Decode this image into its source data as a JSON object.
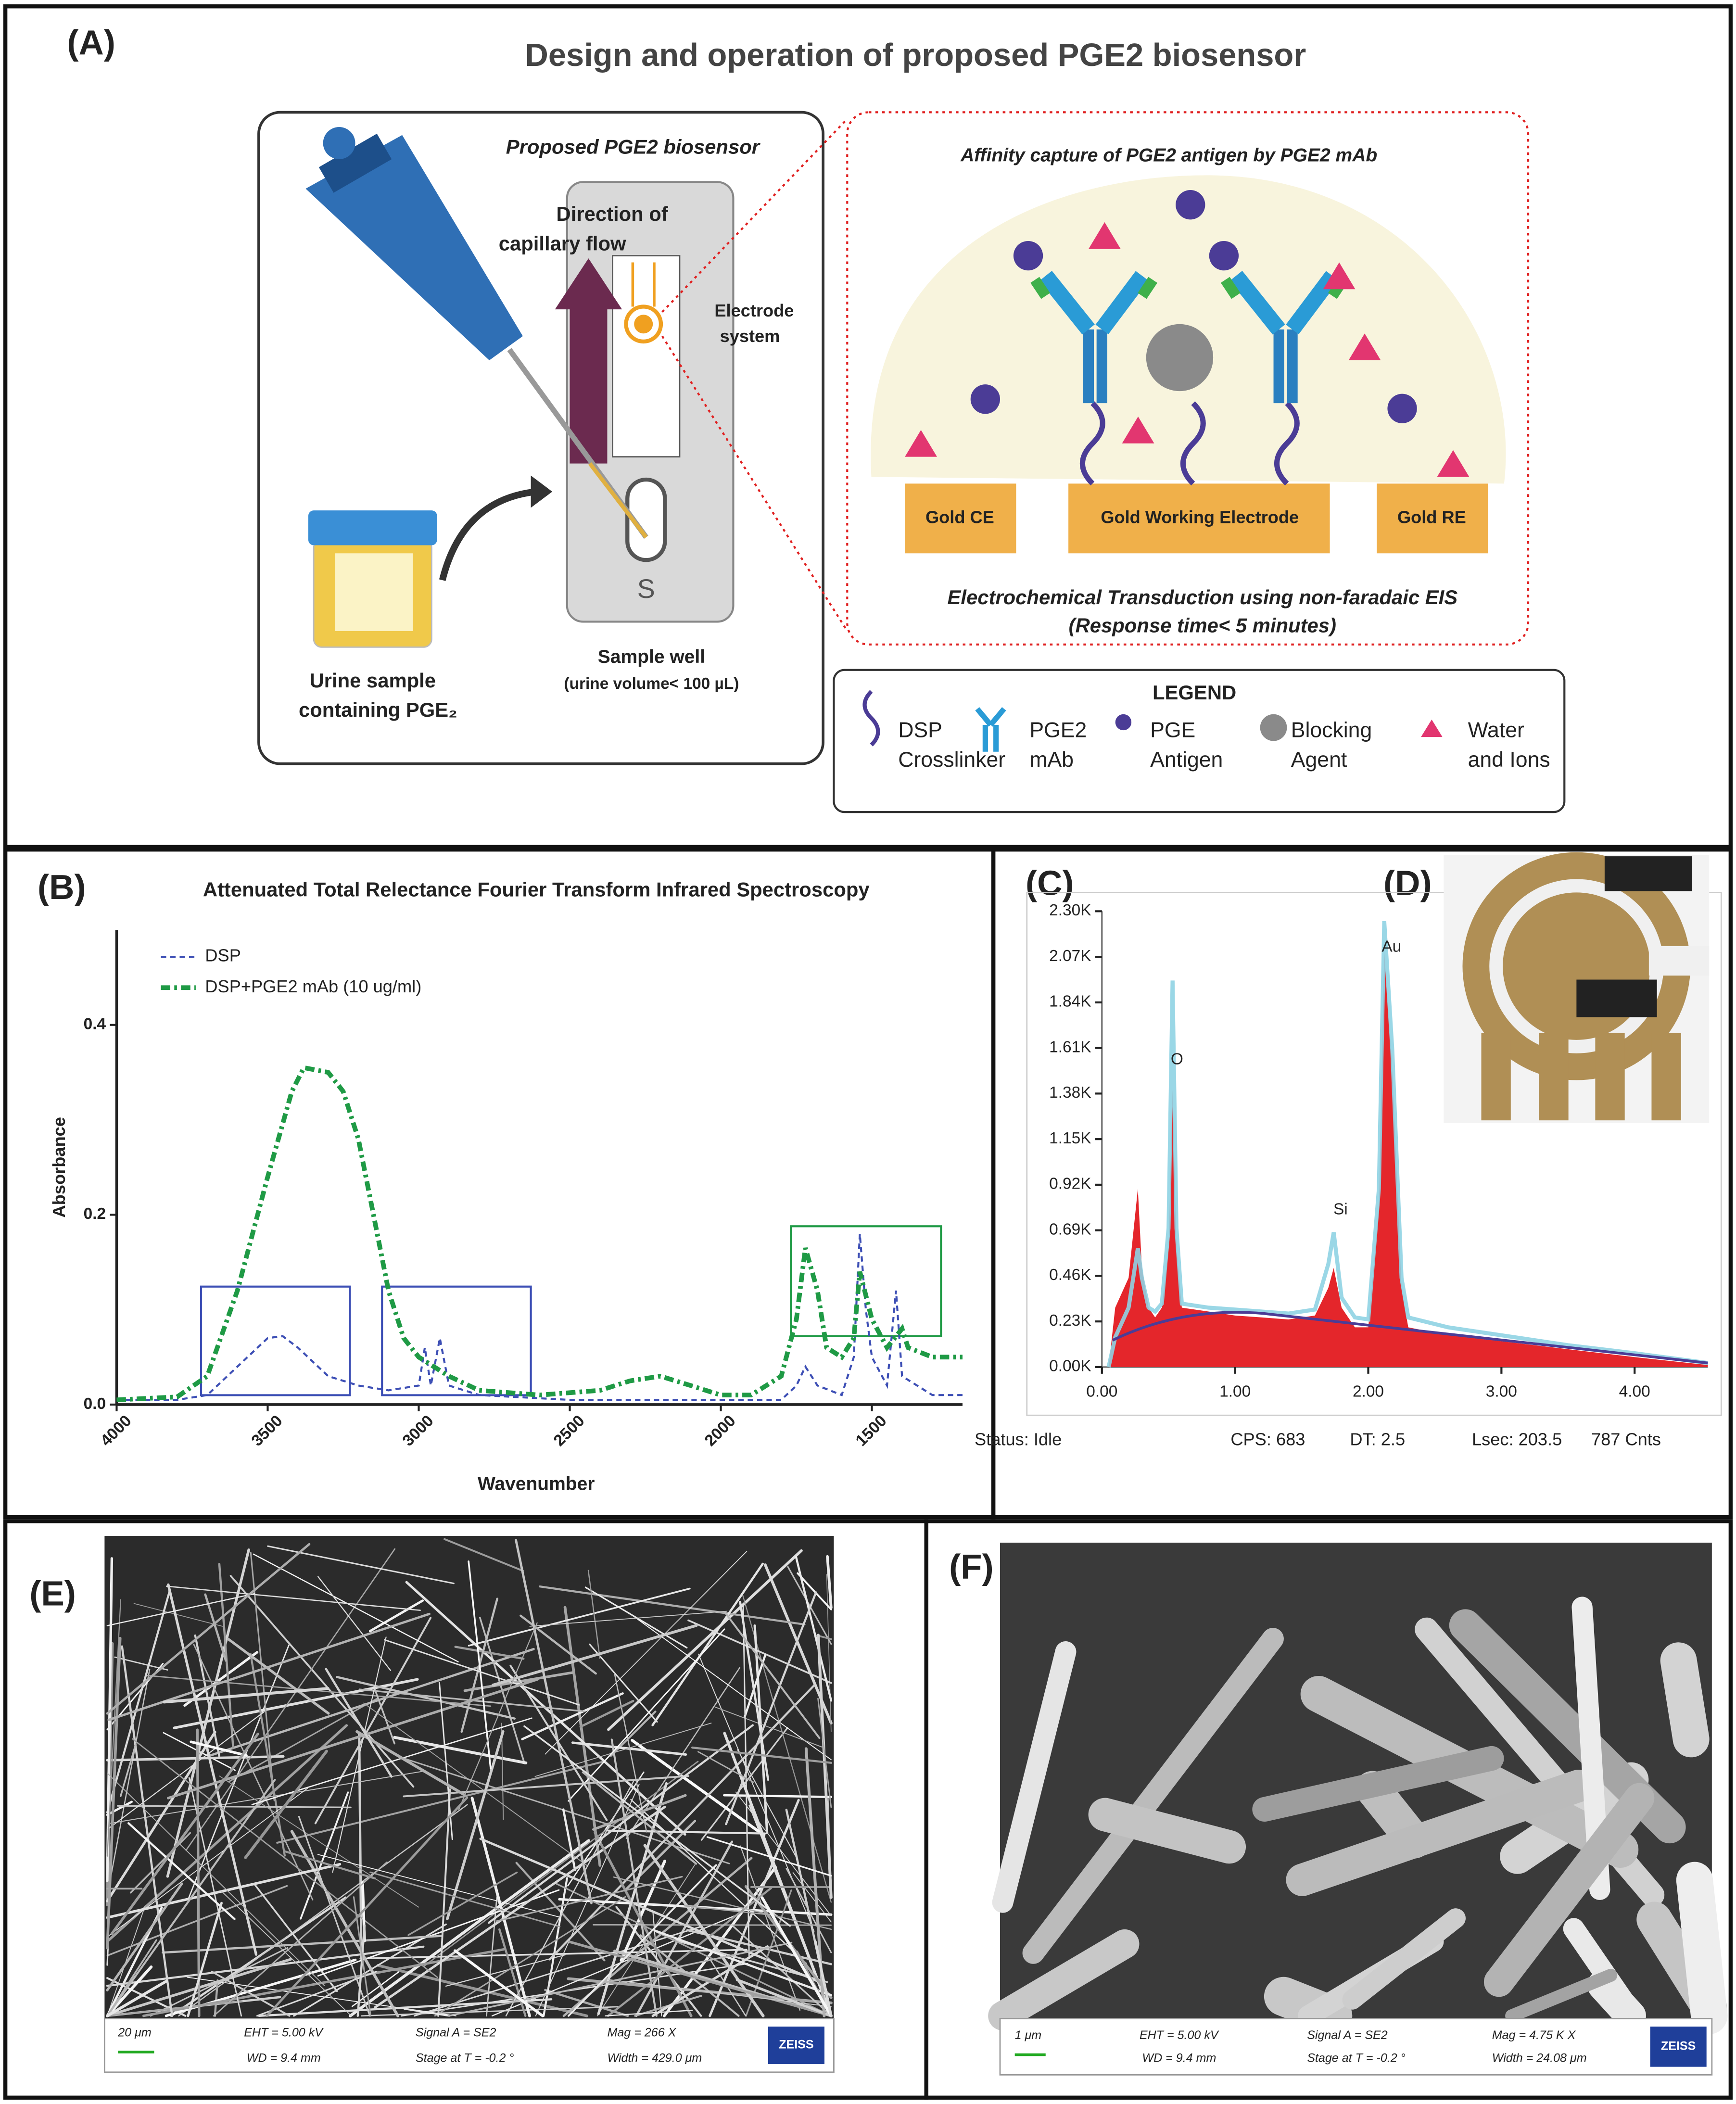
{
  "panel_labels": [
    "(A)",
    "(B)",
    "(C)",
    "(D)",
    "(E)",
    "(F)"
  ],
  "panel_a": {
    "title": "Design and operation of proposed PGE2 biosensor",
    "device_title": "Proposed PGE2 biosensor",
    "flow_label": [
      "Direction of",
      "capillary flow"
    ],
    "electrode_label": [
      "Electrode",
      "system"
    ],
    "urine_label": [
      "Urine sample",
      "containing PGE₂"
    ],
    "well_label": "Sample well",
    "volume_label": "(urine volume< 100 µL)",
    "strip_letter": "S",
    "zoom_title": "Affinity capture of PGE2 antigen by PGE2 mAb",
    "electrodes": [
      "Gold CE",
      "Gold Working Electrode",
      "Gold RE"
    ],
    "transduction": [
      "Electrochemical Transduction using non-faradaic EIS",
      "(Response time< 5 minutes)"
    ],
    "legend_title": "LEGEND",
    "legend": [
      [
        "DSP",
        "Crosslinker"
      ],
      [
        "PGE2",
        "mAb"
      ],
      [
        "PGE",
        "Antigen"
      ],
      [
        "Blocking",
        "Agent"
      ],
      [
        "Water",
        "and Ions"
      ]
    ]
  },
  "chart_data": [
    {
      "type": "line",
      "title": "Attenuated Total Relectance Fourier Transform Infrared Spectroscopy",
      "x_label": "Wavenumber",
      "y_label": "Absorbance",
      "xlim": [
        4000,
        1200
      ],
      "ylim": [
        0,
        0.5
      ],
      "xticks": [
        4000,
        3500,
        3000,
        2500,
        2000,
        1500
      ],
      "yticks": [
        {
          "value": 0,
          "label": "0.0"
        },
        0.2,
        0.4
      ],
      "legend": "upper left",
      "series": [
        {
          "name": "DSP",
          "color": "#3d4fb5",
          "style": "dashed",
          "x": [
            4000,
            3800,
            3700,
            3600,
            3500,
            3450,
            3400,
            3300,
            3200,
            3100,
            3000,
            2980,
            2960,
            2930,
            2900,
            2800,
            2500,
            2000,
            1800,
            1750,
            1720,
            1680,
            1600,
            1560,
            1540,
            1520,
            1500,
            1450,
            1420,
            1400,
            1300,
            1200
          ],
          "values": [
            0.005,
            0.005,
            0.01,
            0.04,
            0.07,
            0.072,
            0.06,
            0.03,
            0.02,
            0.015,
            0.02,
            0.06,
            0.02,
            0.07,
            0.02,
            0.01,
            0.005,
            0.005,
            0.005,
            0.02,
            0.04,
            0.02,
            0.01,
            0.05,
            0.18,
            0.1,
            0.05,
            0.02,
            0.12,
            0.03,
            0.01,
            0.01
          ]
        },
        {
          "name": "DSP+PGE2 mAb (10 ug/ml)",
          "color": "#1f9a45",
          "style": "dashdot",
          "x": [
            4000,
            3800,
            3700,
            3600,
            3500,
            3420,
            3380,
            3300,
            3250,
            3200,
            3150,
            3100,
            3050,
            3000,
            2950,
            2900,
            2800,
            2600,
            2400,
            2300,
            2200,
            2100,
            2000,
            1900,
            1800,
            1750,
            1720,
            1680,
            1650,
            1600,
            1560,
            1540,
            1500,
            1450,
            1400,
            1380,
            1300,
            1200
          ],
          "values": [
            0.005,
            0.008,
            0.03,
            0.12,
            0.24,
            0.33,
            0.355,
            0.35,
            0.33,
            0.28,
            0.2,
            0.12,
            0.07,
            0.05,
            0.04,
            0.03,
            0.015,
            0.01,
            0.015,
            0.025,
            0.03,
            0.02,
            0.01,
            0.01,
            0.03,
            0.09,
            0.165,
            0.12,
            0.06,
            0.05,
            0.07,
            0.14,
            0.09,
            0.06,
            0.08,
            0.06,
            0.05,
            0.05
          ]
        }
      ]
    },
    {
      "type": "area",
      "xlim": [
        0,
        4.55
      ],
      "ylim": [
        0,
        2300
      ],
      "xticks": [
        {
          "value": 0,
          "label": "0.00"
        },
        {
          "value": 1,
          "label": "1.00"
        },
        {
          "value": 2,
          "label": "2.00"
        },
        {
          "value": 3,
          "label": "3.00"
        },
        {
          "value": 4,
          "label": "4.00"
        }
      ],
      "yticks": [
        {
          "value": 0,
          "label": "0.00K"
        },
        {
          "value": 230,
          "label": "0.23K"
        },
        {
          "value": 460,
          "label": "0.46K"
        },
        {
          "value": 690,
          "label": "0.69K"
        },
        {
          "value": 920,
          "label": "0.92K"
        },
        {
          "value": 1150,
          "label": "1.15K"
        },
        {
          "value": 1380,
          "label": "1.38K"
        },
        {
          "value": 1610,
          "label": "1.61K"
        },
        {
          "value": 1840,
          "label": "1.84K"
        },
        {
          "value": 2070,
          "label": "2.07K"
        },
        {
          "value": 2300,
          "label": "2.30K"
        }
      ],
      "annotations": [
        "O",
        "Si",
        "Au"
      ],
      "status": [
        "Status: Idle",
        "CPS: 683",
        "DT: 2.5",
        "Lsec: 203.5",
        "787 Cnts"
      ],
      "series": [
        {
          "color": "#e4262b",
          "x": [
            0.05,
            0.1,
            0.2,
            0.27,
            0.3,
            0.35,
            0.4,
            0.45,
            0.5,
            0.53,
            0.56,
            0.6,
            0.8,
            1.0,
            1.2,
            1.4,
            1.6,
            1.7,
            1.74,
            1.8,
            1.9,
            2.0,
            2.08,
            2.12,
            2.18,
            2.25,
            2.3,
            2.6,
            3.0,
            3.5,
            4.0,
            4.55
          ],
          "values": [
            0,
            300,
            450,
            900,
            500,
            300,
            250,
            300,
            600,
            1400,
            600,
            300,
            280,
            260,
            250,
            240,
            260,
            400,
            500,
            300,
            200,
            200,
            800,
            2100,
            1500,
            400,
            200,
            160,
            130,
            90,
            50,
            10
          ]
        },
        {
          "color": "#8fd3e3",
          "x": [
            0.05,
            0.1,
            0.2,
            0.27,
            0.3,
            0.35,
            0.4,
            0.45,
            0.5,
            0.53,
            0.56,
            0.6,
            0.8,
            1.0,
            1.2,
            1.4,
            1.6,
            1.7,
            1.74,
            1.8,
            1.9,
            2.0,
            2.08,
            2.12,
            2.18,
            2.25,
            2.3,
            2.6,
            3.0,
            3.5,
            4.0,
            4.55
          ],
          "values": [
            0,
            150,
            300,
            600,
            450,
            300,
            280,
            320,
            700,
            1950,
            700,
            320,
            300,
            290,
            280,
            270,
            290,
            520,
            680,
            350,
            250,
            240,
            900,
            2250,
            1600,
            450,
            250,
            200,
            160,
            110,
            70,
            20
          ]
        }
      ]
    }
  ],
  "panel_e": {
    "scale": "20 μm",
    "info": [
      "EHT = 5.00 kV",
      "WD = 9.4 mm",
      "Signal A = SE2",
      "Stage at T = -0.2 °",
      "Mag = 266 X",
      "Width = 429.0 μm"
    ],
    "brand": "ZEISS"
  },
  "panel_f": {
    "scale": "1 μm",
    "info": [
      "EHT = 5.00 kV",
      "WD = 9.4 mm",
      "Signal A = SE2",
      "Stage at T = -0.2 °",
      "Mag = 4.75 K X",
      "Width = 24.08 μm"
    ],
    "brand": "ZEISS"
  }
}
